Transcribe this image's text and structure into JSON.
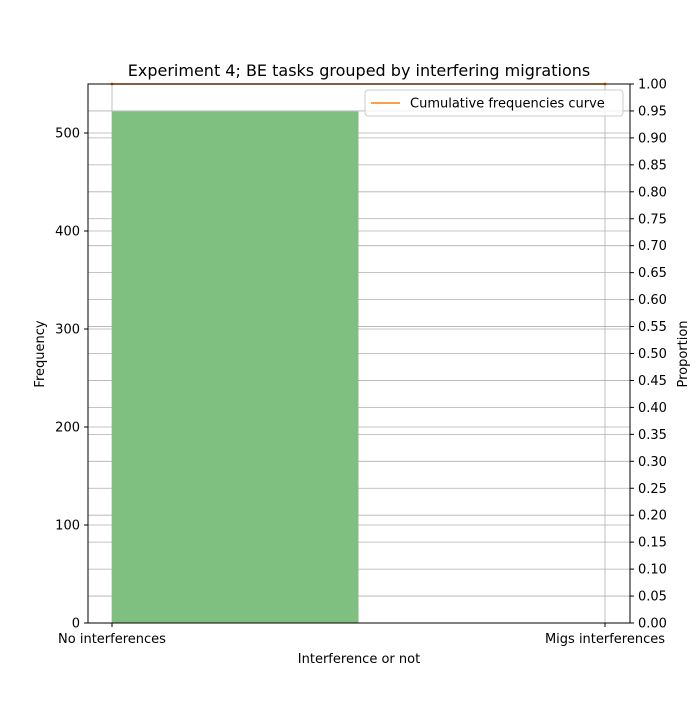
{
  "chart_data": {
    "type": "bar",
    "title": "Experiment 4; BE tasks grouped by interfering migrations",
    "xlabel": "Interference or not",
    "ylabel": "Frequency",
    "y2label": "Proportion",
    "categories": [
      "No interferences",
      "Migs interferences"
    ],
    "values": [
      522,
      0
    ],
    "ylim": [
      0,
      550
    ],
    "y2lim": [
      0,
      1.0
    ],
    "yticks": [
      0,
      100,
      200,
      300,
      400,
      500
    ],
    "y2ticks": [
      0,
      0.05,
      0.1,
      0.15,
      0.2,
      0.25,
      0.3,
      0.35,
      0.4,
      0.45,
      0.5,
      0.55,
      0.6,
      0.65,
      0.7,
      0.75,
      0.8,
      0.85,
      0.9,
      0.95,
      1.0
    ],
    "cumulative_series": {
      "name": "Cumulative frequencies curve",
      "values": [
        1.0,
        1.0
      ]
    },
    "grid": true,
    "legend_position": "top-right",
    "colors": {
      "bar": "#7fbf7f",
      "bar_edge": "#2ca02c",
      "cumulative_line": "#ff7f0e",
      "grid": "#b0b0b0"
    }
  }
}
